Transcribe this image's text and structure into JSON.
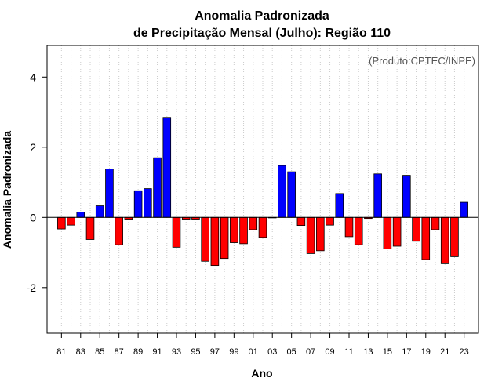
{
  "chart_data": {
    "type": "bar",
    "title_line1": "Anomalia Padronizada",
    "title_line2": "de Precipitação Mensal (Julho): Região 110",
    "xlabel": "Ano",
    "ylabel": "Anomalia Padronizada",
    "credit": "(Produto:CPTEC/INPE)",
    "ylim": [
      -3.3,
      4.9
    ],
    "yticks": [
      -2,
      0,
      2,
      4
    ],
    "ytick_labels": [
      "-2",
      "0",
      "2",
      "4"
    ],
    "xlim": [
      1979.5,
      2024.5
    ],
    "xticks": [
      1981,
      1983,
      1985,
      1987,
      1989,
      1991,
      1993,
      1995,
      1997,
      1999,
      2001,
      2003,
      2005,
      2007,
      2009,
      2011,
      2013,
      2015,
      2017,
      2019,
      2021,
      2023
    ],
    "xtick_labels": [
      "81",
      "83",
      "85",
      "87",
      "89",
      "91",
      "93",
      "95",
      "97",
      "99",
      "01",
      "03",
      "05",
      "07",
      "09",
      "11",
      "13",
      "15",
      "17",
      "19",
      "21",
      "23"
    ],
    "grid": true,
    "positive_color": "#0000ff",
    "negative_color": "#ff0000",
    "bar_outline": "#000000",
    "years": [
      1981,
      1982,
      1983,
      1984,
      1985,
      1986,
      1987,
      1988,
      1989,
      1990,
      1991,
      1992,
      1993,
      1994,
      1995,
      1996,
      1997,
      1998,
      1999,
      2000,
      2001,
      2002,
      2003,
      2004,
      2005,
      2006,
      2007,
      2008,
      2009,
      2010,
      2011,
      2012,
      2013,
      2014,
      2015,
      2016,
      2017,
      2018,
      2019,
      2020,
      2021,
      2022,
      2023
    ],
    "values": [
      -0.33,
      -0.22,
      0.15,
      -0.63,
      0.33,
      1.38,
      -0.78,
      -0.05,
      0.76,
      0.82,
      1.7,
      2.85,
      -0.85,
      -0.05,
      -0.05,
      -1.25,
      -1.37,
      -1.17,
      -0.72,
      -0.75,
      -0.35,
      -0.57,
      0.0,
      1.48,
      1.3,
      -0.23,
      -1.03,
      -0.95,
      -0.22,
      0.68,
      -0.55,
      -0.78,
      -0.03,
      1.24,
      -0.9,
      -0.82,
      1.2,
      -0.68,
      -1.2,
      -0.35,
      -1.32,
      -1.12,
      0.43
    ]
  }
}
